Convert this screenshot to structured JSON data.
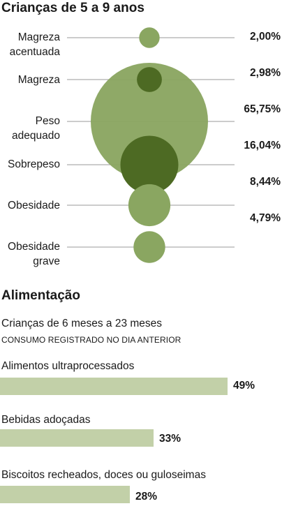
{
  "title": "Crianças de 5 a 9 anos",
  "chart_data": [
    {
      "type": "bubble",
      "title": "Crianças de 5 a 9 anos",
      "categories": [
        "Magreza acentuada",
        "Magreza",
        "Peso adequado",
        "Sobrepeso",
        "Obesidade",
        "Obesidade grave"
      ],
      "values": [
        2.0,
        2.98,
        65.75,
        16.04,
        8.44,
        4.79
      ],
      "value_labels": [
        "2,00%",
        "2,98%",
        "65,75%",
        "16,04%",
        "8,44%",
        "4,79%"
      ],
      "colors": {
        "light": "#8aa661",
        "dark": "#4d6a23",
        "line": "#9a9a9a"
      }
    },
    {
      "type": "bar",
      "title": "Alimentação",
      "subtitle": "Crianças de 6 meses a 23 meses",
      "note": "CONSUMO REGISTRADO NO DIA ANTERIOR",
      "categories": [
        "Alimentos ultraprocessados",
        "Bebidas adoçadas",
        "Biscoitos recheados, doces ou guloseimas"
      ],
      "values": [
        49,
        33,
        28
      ],
      "value_labels": [
        "49%",
        "33%",
        "28%"
      ],
      "color": "#c2d0a8"
    }
  ],
  "labels": {
    "cat_0_line1": "Magreza",
    "cat_0_line2": "acentuada",
    "cat_1": "Magreza",
    "cat_2_line1": "Peso",
    "cat_2_line2": "adequado",
    "cat_3": "Sobrepeso",
    "cat_4": "Obesidade",
    "cat_5_line1": "Obesidade",
    "cat_5_line2": "grave"
  }
}
